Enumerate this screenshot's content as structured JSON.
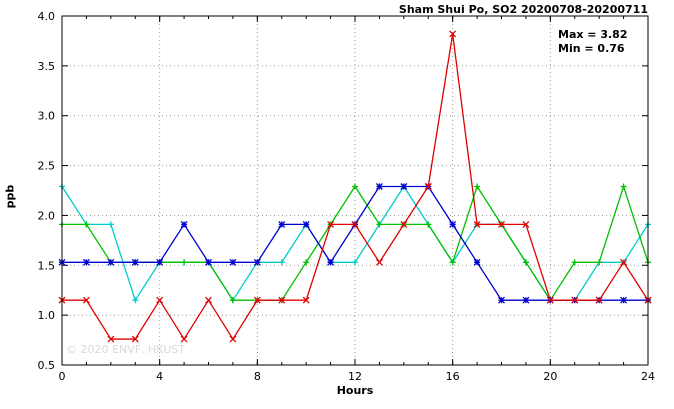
{
  "chart_data": {
    "type": "line",
    "title": "Sham Shui Po, SO2 20200708-20200711",
    "xlabel": "Hours",
    "ylabel": "ppb",
    "xlim": [
      0,
      24
    ],
    "ylim": [
      0.5,
      4.0
    ],
    "xticks": [
      0,
      4,
      8,
      12,
      16,
      20,
      24
    ],
    "yticks": [
      0.5,
      1.0,
      1.5,
      2.0,
      2.5,
      3.0,
      3.5,
      4.0
    ],
    "grid": true,
    "legend": "none",
    "annotations": {
      "max": "Max = 3.82",
      "min": "Min = 0.76"
    },
    "watermark": "© 2020 ENVF, HKUST",
    "x": [
      0,
      1,
      2,
      3,
      4,
      5,
      6,
      7,
      8,
      9,
      10,
      11,
      12,
      13,
      14,
      15,
      16,
      17,
      18,
      19,
      20,
      21,
      22,
      23,
      24
    ],
    "series": [
      {
        "name": "cyan",
        "color": "#00cccc",
        "marker": "+",
        "values": [
          2.29,
          1.91,
          1.91,
          1.15,
          1.53,
          1.53,
          1.53,
          1.15,
          1.53,
          1.53,
          1.91,
          1.53,
          1.53,
          1.91,
          2.29,
          1.91,
          1.53,
          1.91,
          1.91,
          1.53,
          1.15,
          1.15,
          1.53,
          1.53,
          1.91
        ]
      },
      {
        "name": "green",
        "color": "#00c000",
        "marker": "+",
        "values": [
          1.91,
          1.91,
          1.53,
          1.53,
          1.53,
          1.53,
          1.53,
          1.15,
          1.15,
          1.15,
          1.53,
          1.91,
          2.29,
          1.91,
          1.91,
          1.91,
          1.53,
          2.29,
          1.91,
          1.53,
          1.15,
          1.53,
          1.53,
          2.29,
          1.53
        ]
      },
      {
        "name": "blue",
        "color": "#0000d0",
        "marker": "*",
        "values": [
          1.53,
          1.53,
          1.53,
          1.53,
          1.53,
          1.91,
          1.53,
          1.53,
          1.53,
          1.91,
          1.91,
          1.53,
          1.91,
          2.29,
          2.29,
          2.29,
          1.91,
          1.53,
          1.15,
          1.15,
          1.15,
          1.15,
          1.15,
          1.15,
          1.15
        ]
      },
      {
        "name": "red",
        "color": "#e00000",
        "marker": "x",
        "values": [
          1.15,
          1.15,
          0.76,
          0.76,
          1.15,
          0.76,
          1.15,
          0.76,
          1.15,
          1.15,
          1.15,
          1.91,
          1.91,
          1.53,
          1.91,
          2.29,
          3.82,
          1.91,
          1.91,
          1.91,
          1.15,
          1.15,
          1.15,
          1.53,
          1.15
        ]
      }
    ]
  }
}
